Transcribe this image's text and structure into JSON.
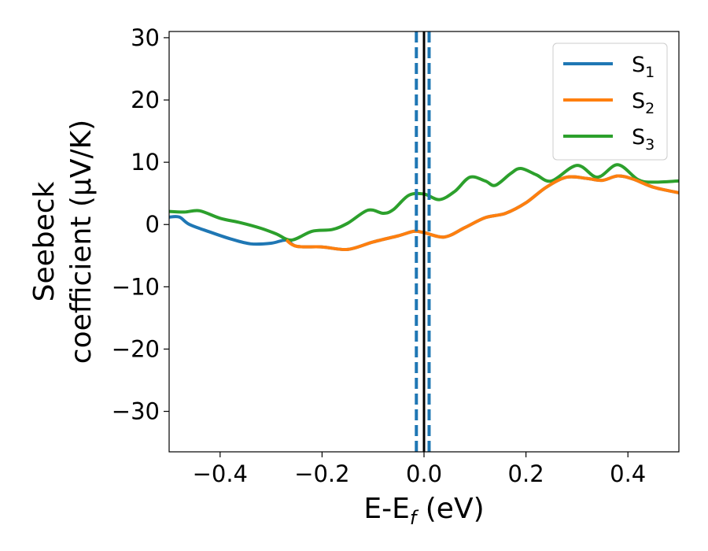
{
  "chart_data": {
    "type": "line",
    "xlabel": {
      "main": "E-E",
      "sub": "f",
      "tail": " (eV)"
    },
    "ylabel": {
      "line1": "Seebeck",
      "line2": "coefficient  (μV/K)"
    },
    "xlim": [
      -0.5,
      0.5
    ],
    "ylim": [
      -36.5,
      31
    ],
    "xticks": [
      -0.4,
      -0.2,
      0.0,
      0.2,
      0.4
    ],
    "xtick_labels": [
      "−0.4",
      "−0.2",
      "0.0",
      "0.2",
      "0.4"
    ],
    "yticks": [
      -30,
      -20,
      -10,
      0,
      10,
      20,
      30
    ],
    "ytick_labels": [
      "−30",
      "−20",
      "−10",
      "0",
      "10",
      "20",
      "30"
    ],
    "grid": false,
    "legend_position": "top-right",
    "vlines": [
      {
        "x": 0.0,
        "style": "solid",
        "color": "#000000"
      },
      {
        "x": -0.015,
        "style": "dashed",
        "color": "#1f77b4"
      },
      {
        "x": 0.01,
        "style": "dashed",
        "color": "#1f77b4"
      }
    ],
    "series": [
      {
        "name": "S",
        "sub": "1",
        "color": "#1f77b4",
        "points": [
          [
            -0.5,
            1.2
          ],
          [
            -0.48,
            1.2
          ],
          [
            -0.46,
            0
          ],
          [
            -0.42,
            -1.2
          ],
          [
            -0.38,
            -2.3
          ],
          [
            -0.34,
            -3.1
          ],
          [
            -0.3,
            -3.0
          ],
          [
            -0.27,
            -2.5
          ],
          [
            -0.25,
            -3.5
          ],
          [
            -0.2,
            -3.6
          ],
          [
            -0.15,
            -4.0
          ],
          [
            -0.1,
            -2.8
          ],
          [
            -0.05,
            -1.8
          ],
          [
            -0.02,
            -1.1
          ],
          [
            0.0,
            -1.3
          ],
          [
            0.04,
            -2.0
          ],
          [
            0.08,
            -0.5
          ],
          [
            0.12,
            1.1
          ],
          [
            0.16,
            1.8
          ],
          [
            0.2,
            3.5
          ],
          [
            0.24,
            6.0
          ],
          [
            0.28,
            7.6
          ],
          [
            0.32,
            7.4
          ],
          [
            0.35,
            7.1
          ],
          [
            0.38,
            7.8
          ],
          [
            0.41,
            7.3
          ],
          [
            0.45,
            6.0
          ],
          [
            0.5,
            5.1
          ]
        ]
      },
      {
        "name": "S",
        "sub": "2",
        "color": "#ff7f0e",
        "points": [
          [
            -0.27,
            -2.5
          ],
          [
            -0.25,
            -3.5
          ],
          [
            -0.2,
            -3.6
          ],
          [
            -0.15,
            -4.0
          ],
          [
            -0.1,
            -2.8
          ],
          [
            -0.05,
            -1.8
          ],
          [
            -0.02,
            -1.1
          ],
          [
            0.0,
            -1.3
          ],
          [
            0.04,
            -2.0
          ],
          [
            0.08,
            -0.5
          ],
          [
            0.12,
            1.1
          ],
          [
            0.16,
            1.8
          ],
          [
            0.2,
            3.5
          ],
          [
            0.24,
            6.0
          ],
          [
            0.28,
            7.6
          ],
          [
            0.32,
            7.4
          ],
          [
            0.35,
            7.1
          ],
          [
            0.38,
            7.8
          ],
          [
            0.41,
            7.3
          ],
          [
            0.45,
            6.0
          ],
          [
            0.5,
            5.1
          ]
        ]
      },
      {
        "name": "S",
        "sub": "3",
        "color": "#2ca02c",
        "points": [
          [
            -0.5,
            2.1
          ],
          [
            -0.47,
            2.0
          ],
          [
            -0.44,
            2.2
          ],
          [
            -0.4,
            1.0
          ],
          [
            -0.36,
            0.3
          ],
          [
            -0.32,
            -0.6
          ],
          [
            -0.29,
            -1.5
          ],
          [
            -0.26,
            -2.5
          ],
          [
            -0.22,
            -1.1
          ],
          [
            -0.18,
            -0.8
          ],
          [
            -0.15,
            0.2
          ],
          [
            -0.11,
            2.3
          ],
          [
            -0.08,
            1.8
          ],
          [
            -0.06,
            2.4
          ],
          [
            -0.03,
            4.7
          ],
          [
            0.0,
            4.9
          ],
          [
            0.03,
            4.0
          ],
          [
            0.06,
            5.3
          ],
          [
            0.09,
            7.6
          ],
          [
            0.12,
            7.0
          ],
          [
            0.14,
            6.3
          ],
          [
            0.17,
            8.2
          ],
          [
            0.19,
            9.0
          ],
          [
            0.22,
            8.0
          ],
          [
            0.25,
            7.0
          ],
          [
            0.3,
            9.5
          ],
          [
            0.34,
            7.6
          ],
          [
            0.38,
            9.6
          ],
          [
            0.42,
            7.2
          ],
          [
            0.45,
            6.8
          ],
          [
            0.5,
            7.0
          ]
        ]
      }
    ]
  }
}
